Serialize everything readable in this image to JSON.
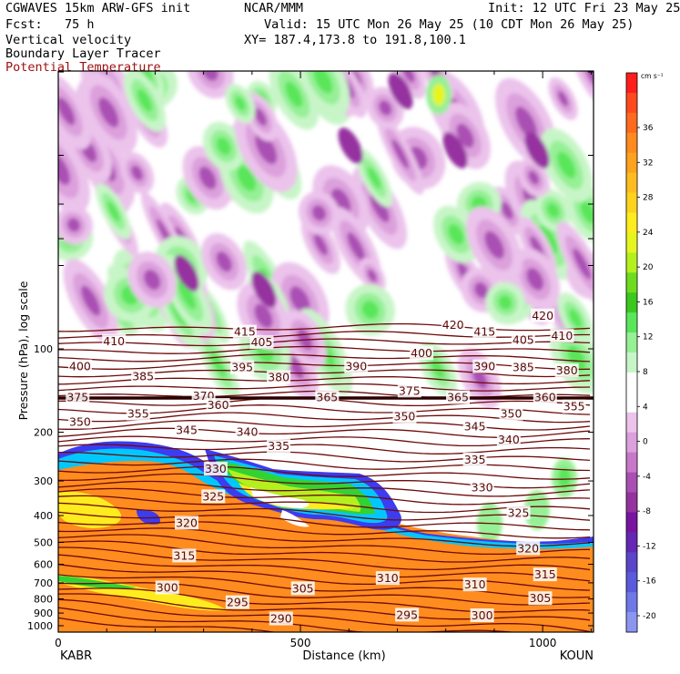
{
  "header": {
    "model": "CGWAVES 15km ARW-GFS init",
    "forecast": "Fcst:   75 h",
    "field1": "Vertical velocity",
    "field2": "Boundary Layer Tracer",
    "field3": "Potential Temperature",
    "org": "NCAR/MMM",
    "init": "Init: 12 UTC Fri 23 May 25",
    "valid": "Valid: 15 UTC Mon 26 May 25 (10 CDT Mon 26 May 25)",
    "xy": "XY= 187.4,173.8 to 191.8,100.1"
  },
  "chart_data": {
    "type": "heatmap",
    "xlabel": "Distance (km)",
    "ylabel": "Pressure (hPa), log scale",
    "x_ticks": [
      0,
      500,
      1000
    ],
    "x_range": [
      0,
      1105
    ],
    "left_station": "KABR",
    "right_station": "KOUN",
    "y_ticks": [
      100,
      200,
      300,
      400,
      500,
      600,
      700,
      800,
      900,
      1000
    ],
    "y_scale": "log",
    "colorbar": {
      "units": "cm s⁻¹",
      "tick_labels": [
        36,
        32,
        28,
        24,
        20,
        16,
        12,
        8,
        4,
        0,
        -4,
        -8,
        -12,
        -16,
        -20
      ],
      "colors": [
        "#ff1e1e",
        "#ff4a1e",
        "#ff6a1e",
        "#ff8a1e",
        "#ffa21e",
        "#ffbc1e",
        "#ffd21e",
        "#ffec1e",
        "#e6f51e",
        "#b4f01e",
        "#6edc1e",
        "#3cc81e",
        "#5ae65a",
        "#96f096",
        "#c8f5c8",
        "#ffffff",
        "#ffffff",
        "#ebc3eb",
        "#dca0dc",
        "#c878c8",
        "#aa50b4",
        "#9632a0",
        "#7814a0",
        "#6428b4",
        "#5a46c8",
        "#5a5adc",
        "#6e78e6",
        "#8c96f0"
      ]
    },
    "theta_contour_labels": [
      290,
      295,
      300,
      305,
      310,
      315,
      320,
      325,
      330,
      335,
      340,
      345,
      350,
      355,
      360,
      365,
      370,
      375,
      380,
      385,
      390,
      395,
      400,
      405,
      410,
      415,
      420
    ],
    "plot_labels": [
      {
        "text": "420",
        "x": 815,
        "p": 82
      },
      {
        "text": "420",
        "x": 1000,
        "p": 76
      },
      {
        "text": "415",
        "x": 385,
        "p": 87
      },
      {
        "text": "415",
        "x": 880,
        "p": 87
      },
      {
        "text": "410",
        "x": 115,
        "p": 94
      },
      {
        "text": "410",
        "x": 1040,
        "p": 90
      },
      {
        "text": "405",
        "x": 420,
        "p": 95
      },
      {
        "text": "405",
        "x": 960,
        "p": 93
      },
      {
        "text": "400",
        "x": 45,
        "p": 116
      },
      {
        "text": "400",
        "x": 750,
        "p": 104
      },
      {
        "text": "395",
        "x": 380,
        "p": 117
      },
      {
        "text": "390",
        "x": 615,
        "p": 116
      },
      {
        "text": "390",
        "x": 880,
        "p": 116
      },
      {
        "text": "385",
        "x": 175,
        "p": 126
      },
      {
        "text": "385",
        "x": 960,
        "p": 117
      },
      {
        "text": "380",
        "x": 455,
        "p": 127
      },
      {
        "text": "380",
        "x": 1050,
        "p": 120
      },
      {
        "text": "375",
        "x": 40,
        "p": 150
      },
      {
        "text": "375",
        "x": 725,
        "p": 142
      },
      {
        "text": "370",
        "x": 300,
        "p": 148
      },
      {
        "text": "365",
        "x": 555,
        "p": 150
      },
      {
        "text": "365",
        "x": 825,
        "p": 150
      },
      {
        "text": "360",
        "x": 1005,
        "p": 150
      },
      {
        "text": "360",
        "x": 330,
        "p": 160
      },
      {
        "text": "355",
        "x": 165,
        "p": 172
      },
      {
        "text": "355",
        "x": 1065,
        "p": 162
      },
      {
        "text": "350",
        "x": 45,
        "p": 184
      },
      {
        "text": "350",
        "x": 715,
        "p": 176
      },
      {
        "text": "350",
        "x": 935,
        "p": 172
      },
      {
        "text": "345",
        "x": 265,
        "p": 197
      },
      {
        "text": "345",
        "x": 860,
        "p": 191
      },
      {
        "text": "340",
        "x": 390,
        "p": 200
      },
      {
        "text": "340",
        "x": 930,
        "p": 213
      },
      {
        "text": "335",
        "x": 455,
        "p": 225
      },
      {
        "text": "335",
        "x": 860,
        "p": 252
      },
      {
        "text": "330",
        "x": 325,
        "p": 272
      },
      {
        "text": "330",
        "x": 875,
        "p": 318
      },
      {
        "text": "325",
        "x": 320,
        "p": 342
      },
      {
        "text": "325",
        "x": 950,
        "p": 392
      },
      {
        "text": "320",
        "x": 265,
        "p": 426
      },
      {
        "text": "320",
        "x": 970,
        "p": 527
      },
      {
        "text": "315",
        "x": 260,
        "p": 560
      },
      {
        "text": "315",
        "x": 1005,
        "p": 655
      },
      {
        "text": "310",
        "x": 680,
        "p": 675
      },
      {
        "text": "310",
        "x": 860,
        "p": 712
      },
      {
        "text": "305",
        "x": 505,
        "p": 735
      },
      {
        "text": "305",
        "x": 995,
        "p": 798
      },
      {
        "text": "300",
        "x": 225,
        "p": 730
      },
      {
        "text": "300",
        "x": 875,
        "p": 920
      },
      {
        "text": "295",
        "x": 370,
        "p": 825
      },
      {
        "text": "295",
        "x": 720,
        "p": 916
      },
      {
        "text": "290",
        "x": 460,
        "p": 945
      }
    ]
  }
}
